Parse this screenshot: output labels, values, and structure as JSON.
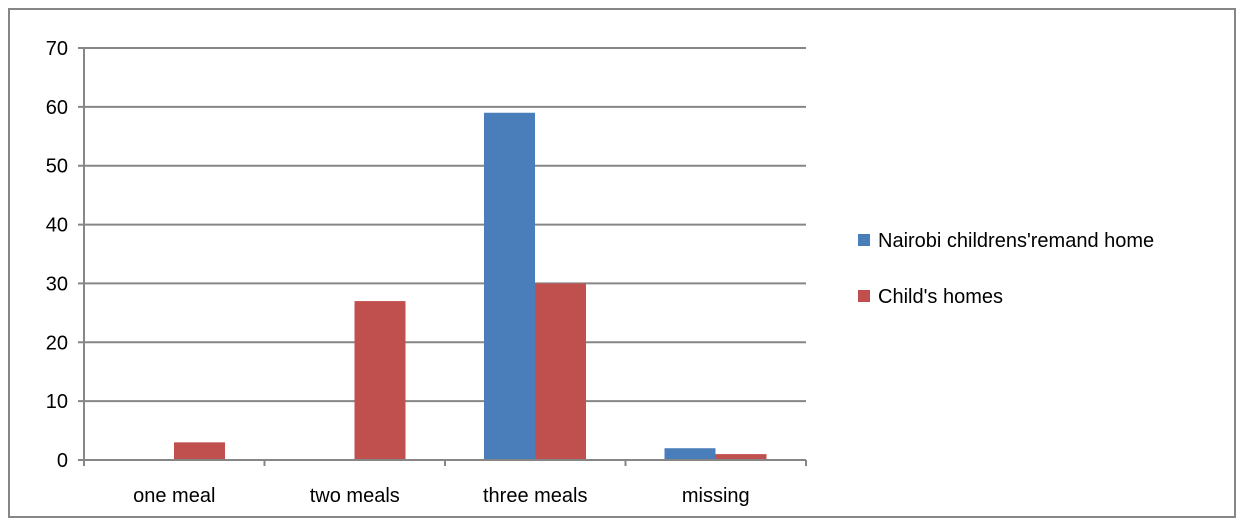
{
  "chart_data": {
    "type": "bar",
    "title": "",
    "xlabel": "",
    "ylabel": "",
    "categories": [
      "one meal",
      "two meals",
      "three meals",
      "missing"
    ],
    "series": [
      {
        "name": "Nairobi childrens'remand home",
        "color": "#4a7ebb",
        "values": [
          0,
          0,
          59,
          2
        ]
      },
      {
        "name": "Child's homes",
        "color": "#c0504d",
        "values": [
          3,
          27,
          30,
          1
        ]
      }
    ],
    "ylim": [
      0,
      70
    ],
    "yticks": [
      0,
      10,
      20,
      30,
      40,
      50,
      60,
      70
    ],
    "grid": true,
    "legend_position": "right"
  }
}
